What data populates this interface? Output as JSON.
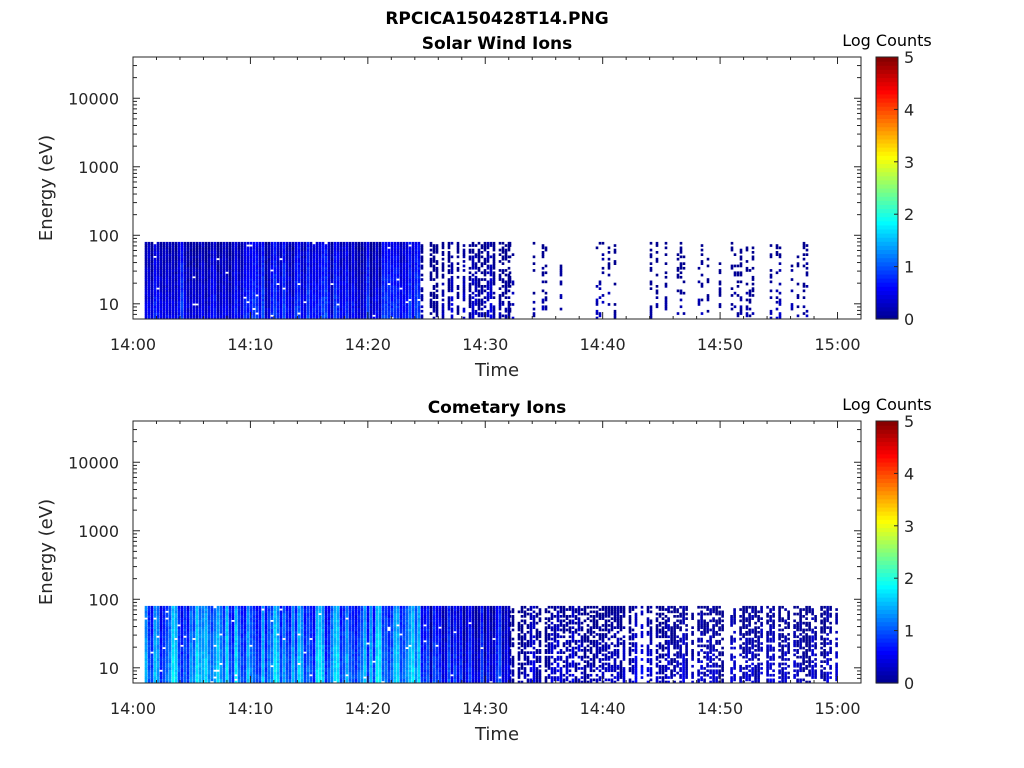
{
  "figure": {
    "title": "RPCICA150428T14.PNG",
    "colorbar_label": "Log Counts",
    "colormap": [
      "#00008f",
      "#0000ff",
      "#00ffff",
      "#ffff00",
      "#ff0000",
      "#800000"
    ]
  },
  "chart_data": [
    {
      "type": "heatmap",
      "title": "Solar Wind Ions",
      "xlabel": "Time",
      "ylabel": "Energy (eV)",
      "xlim": [
        "14:00",
        "15:02"
      ],
      "ylim": [
        6,
        40000
      ],
      "yscale": "log",
      "x_ticks": [
        "14:00",
        "14:10",
        "14:20",
        "14:30",
        "14:40",
        "14:50",
        "15:00"
      ],
      "y_ticks": [
        10,
        100,
        1000,
        10000
      ],
      "y_tick_labels": [
        "10",
        "100",
        "1000",
        "10000"
      ],
      "energy_range_eV": [
        6,
        80
      ],
      "data_start": "14:01",
      "data_end": "15:00",
      "colorbar": {
        "label": "Log Counts",
        "min": 0,
        "max": 5,
        "ticks": [
          "0",
          "1",
          "2",
          "3",
          "4",
          "5"
        ]
      },
      "segments": [
        {
          "start": "14:01",
          "end": "14:24.5",
          "fill": "dense",
          "log_counts": [
            0.3,
            1.0
          ]
        },
        {
          "start": "14:24.5",
          "end": "14:32",
          "fill": "patchy",
          "log_counts": [
            0.0,
            0.5
          ]
        },
        {
          "start": "14:32",
          "end": "15:00",
          "fill": "sparse",
          "log_counts": [
            0.0,
            0.3
          ]
        }
      ]
    },
    {
      "type": "heatmap",
      "title": "Cometary Ions",
      "xlabel": "Time",
      "ylabel": "Energy (eV)",
      "xlim": [
        "14:00",
        "15:02"
      ],
      "ylim": [
        6,
        40000
      ],
      "yscale": "log",
      "x_ticks": [
        "14:00",
        "14:10",
        "14:20",
        "14:30",
        "14:40",
        "14:50",
        "15:00"
      ],
      "y_ticks": [
        10,
        100,
        1000,
        10000
      ],
      "y_tick_labels": [
        "10",
        "100",
        "1000",
        "10000"
      ],
      "energy_range_eV": [
        6,
        80
      ],
      "data_start": "14:01",
      "data_end": "15:00",
      "colorbar": {
        "label": "Log Counts",
        "min": 0,
        "max": 5,
        "ticks": [
          "0",
          "1",
          "2",
          "3",
          "4",
          "5"
        ]
      },
      "segments": [
        {
          "start": "14:01",
          "end": "14:24.5",
          "fill": "dense",
          "log_counts": [
            0.8,
            1.9
          ]
        },
        {
          "start": "14:24.5",
          "end": "14:32",
          "fill": "dense",
          "log_counts": [
            0.3,
            1.1
          ]
        },
        {
          "start": "14:32",
          "end": "14:45.5",
          "fill": "patchy",
          "log_counts": [
            0.0,
            0.6
          ]
        },
        {
          "start": "14:45.5",
          "end": "15:00",
          "fill": "patchy",
          "log_counts": [
            0.0,
            0.5
          ]
        }
      ]
    }
  ]
}
